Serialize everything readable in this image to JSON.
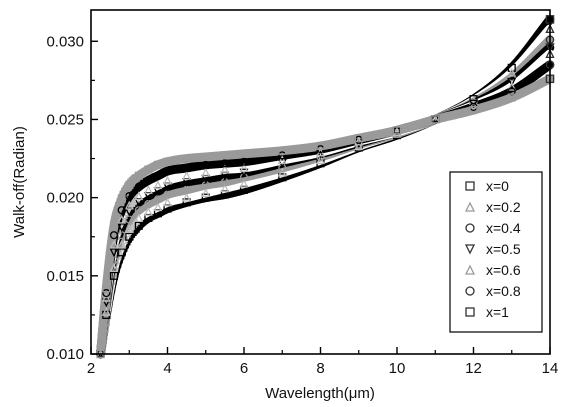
{
  "chart_data": {
    "type": "scatter",
    "title": "",
    "xlabel": "Wavelength(μm)",
    "ylabel": "Walk-off(Radian)",
    "xlim": [
      2,
      14
    ],
    "ylim": [
      0.01,
      0.032
    ],
    "xticks": [
      2,
      4,
      6,
      8,
      10,
      12,
      14
    ],
    "xtick_labels": [
      "2",
      "4",
      "6",
      "8",
      "10",
      "12",
      "14"
    ],
    "yticks": [
      0.01,
      0.015,
      0.02,
      0.025,
      0.03
    ],
    "ytick_labels": [
      "0.010",
      "0.015",
      "0.020",
      "0.025",
      "0.030"
    ],
    "grid": false,
    "legend_position": "lower-right",
    "x": [
      2.25,
      2.4,
      2.6,
      2.8,
      3.0,
      3.25,
      3.5,
      3.75,
      4.0,
      4.5,
      5.0,
      5.5,
      6.0,
      7.0,
      8.0,
      9.0,
      10.0,
      11.0,
      12.0,
      13.0,
      14.0
    ],
    "series": [
      {
        "name": "x=0",
        "marker": "square",
        "color": "#000000",
        "values": [
          0.01,
          0.0125,
          0.015,
          0.0165,
          0.0175,
          0.0182,
          0.0187,
          0.019,
          0.0193,
          0.0197,
          0.02,
          0.0202,
          0.0205,
          0.0213,
          0.0222,
          0.0232,
          0.024,
          0.025,
          0.0263,
          0.0283,
          0.0314
        ]
      },
      {
        "name": "x=0.2",
        "marker": "triangle-up",
        "color": "#ffffff",
        "values": [
          0.01,
          0.0127,
          0.0155,
          0.017,
          0.018,
          0.0187,
          0.0191,
          0.0194,
          0.0197,
          0.02,
          0.0203,
          0.0206,
          0.0209,
          0.0216,
          0.0224,
          0.0233,
          0.0241,
          0.025,
          0.0262,
          0.028,
          0.0308
        ]
      },
      {
        "name": "x=0.4",
        "marker": "circle",
        "color": "#9a9a9a",
        "values": [
          0.01,
          0.013,
          0.016,
          0.0176,
          0.0186,
          0.0192,
          0.0196,
          0.0199,
          0.0202,
          0.0205,
          0.0208,
          0.021,
          0.0213,
          0.0219,
          0.0226,
          0.0234,
          0.0241,
          0.025,
          0.0261,
          0.0277,
          0.0301
        ]
      },
      {
        "name": "x=0.5",
        "marker": "triangle-down",
        "color": "#000000",
        "values": [
          0.01,
          0.0133,
          0.0165,
          0.0181,
          0.0191,
          0.0197,
          0.0201,
          0.0204,
          0.0207,
          0.021,
          0.0212,
          0.0214,
          0.0216,
          0.0222,
          0.0228,
          0.0235,
          0.0242,
          0.025,
          0.026,
          0.0274,
          0.0296
        ]
      },
      {
        "name": "x=0.6",
        "marker": "triangle-up",
        "color": "#ffffff",
        "values": [
          0.01,
          0.0136,
          0.017,
          0.0186,
          0.0195,
          0.0201,
          0.0205,
          0.0208,
          0.0211,
          0.0214,
          0.0216,
          0.0218,
          0.0219,
          0.0224,
          0.0229,
          0.0236,
          0.0242,
          0.025,
          0.0259,
          0.0271,
          0.0292
        ]
      },
      {
        "name": "x=0.8",
        "marker": "circle",
        "color": "#000000",
        "values": [
          0.01,
          0.0139,
          0.0176,
          0.0192,
          0.0201,
          0.0207,
          0.0211,
          0.0214,
          0.0217,
          0.0219,
          0.0221,
          0.0222,
          0.0223,
          0.0227,
          0.0231,
          0.0237,
          0.0243,
          0.025,
          0.0258,
          0.0268,
          0.0285
        ]
      },
      {
        "name": "x=1",
        "marker": "square",
        "color": "#9a9a9a",
        "values": [
          0.01,
          0.0142,
          0.0182,
          0.0199,
          0.0208,
          0.0214,
          0.0218,
          0.0221,
          0.0223,
          0.0225,
          0.0226,
          0.0227,
          0.0228,
          0.023,
          0.0233,
          0.0238,
          0.0243,
          0.025,
          0.0256,
          0.0264,
          0.0276
        ]
      }
    ]
  }
}
